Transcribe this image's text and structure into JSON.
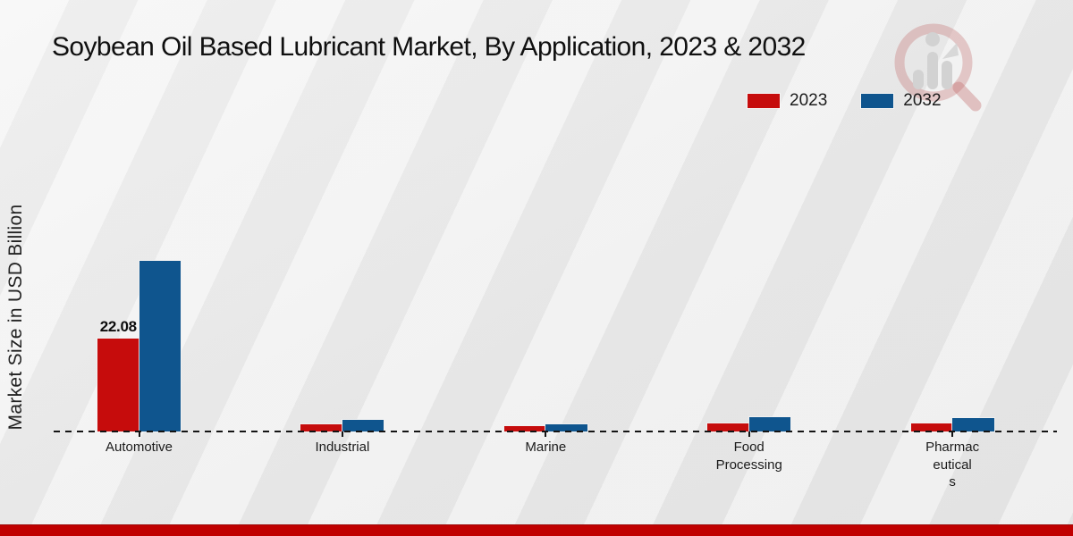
{
  "title": "Soybean Oil Based Lubricant Market, By Application, 2023 & 2032",
  "y_axis_title": "Market Size in USD Billion",
  "footer": {
    "color": "#c00000"
  },
  "watermark": {
    "name": "magnifier-bar-chart-logo",
    "ring_color": "rgba(195,110,110,0.35)",
    "glyph_color": "#d2d2d2"
  },
  "chart_data": {
    "type": "bar",
    "title": "Soybean Oil Based Lubricant Market, By Application, 2023 & 2032",
    "xlabel": "",
    "ylabel": "Market Size in USD Billion",
    "categories": [
      "Automotive",
      "Industrial",
      "Marine",
      "Food Processing",
      "Pharmaceuticals"
    ],
    "category_display_lines": [
      [
        "Automotive"
      ],
      [
        "Industrial"
      ],
      [
        "Marine"
      ],
      [
        "Food",
        "Processing"
      ],
      [
        "Pharmac",
        "eutical",
        "s"
      ]
    ],
    "series": [
      {
        "name": "2023",
        "color": "#c60c0c",
        "values": [
          22.08,
          1.8,
          1.2,
          1.9,
          1.9
        ]
      },
      {
        "name": "2032",
        "color": "#0f558e",
        "values": [
          40.7,
          2.8,
          1.8,
          3.3,
          3.2
        ]
      }
    ],
    "value_labels": [
      {
        "series": "2023",
        "category": "Automotive",
        "text": "22.08"
      }
    ],
    "baseline_value": 0,
    "grid": false,
    "legend_position": "top-right",
    "x_tick_marks": true,
    "y_ticks_visible": false
  }
}
